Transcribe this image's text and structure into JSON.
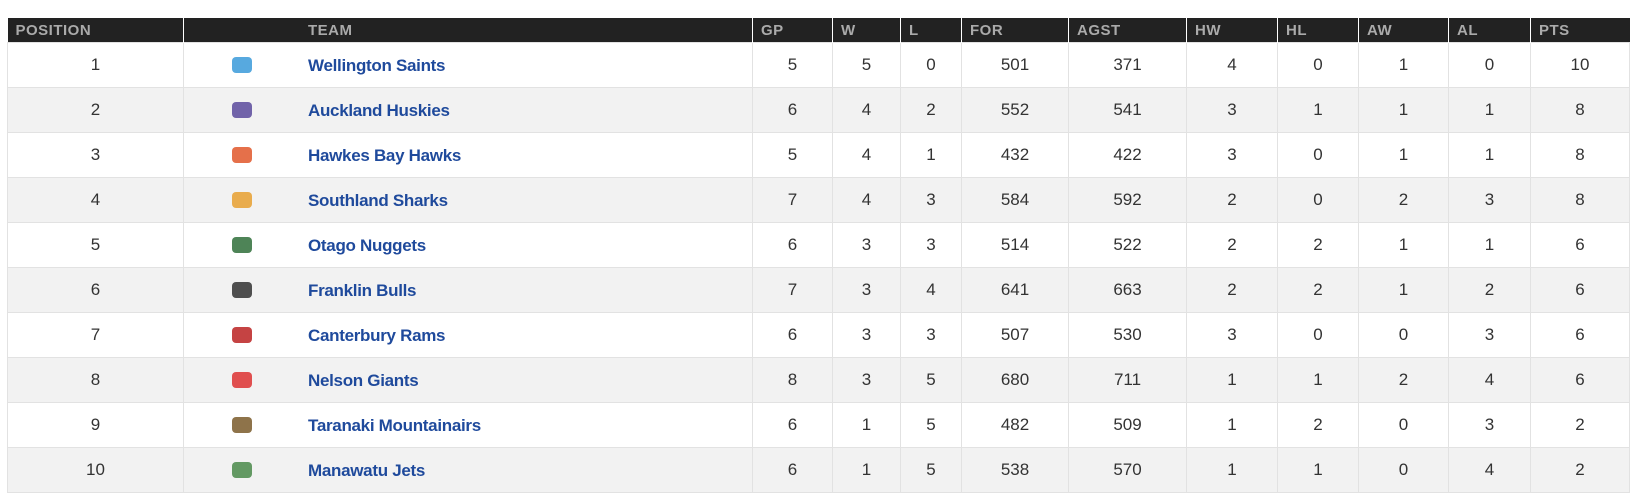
{
  "table": {
    "header": [
      "POSITION",
      "TEAM",
      "GP",
      "W",
      "L",
      "FOR",
      "AGST",
      "HW",
      "HL",
      "AW",
      "AL",
      "PTS"
    ],
    "rows": [
      [
        1,
        "Wellington Saints",
        5,
        5,
        0,
        501,
        371,
        4,
        0,
        1,
        0,
        10
      ],
      [
        2,
        "Auckland Huskies",
        6,
        4,
        2,
        552,
        541,
        3,
        1,
        1,
        1,
        8
      ],
      [
        3,
        "Hawkes Bay Hawks",
        5,
        4,
        1,
        432,
        422,
        3,
        0,
        1,
        1,
        8
      ],
      [
        4,
        "Southland Sharks",
        7,
        4,
        3,
        584,
        592,
        2,
        0,
        2,
        3,
        8
      ],
      [
        5,
        "Otago Nuggets",
        6,
        3,
        3,
        514,
        522,
        2,
        2,
        1,
        1,
        6
      ],
      [
        6,
        "Franklin Bulls",
        7,
        3,
        4,
        641,
        663,
        2,
        2,
        1,
        2,
        6
      ],
      [
        7,
        "Canterbury Rams",
        6,
        3,
        3,
        507,
        530,
        3,
        0,
        0,
        3,
        6
      ],
      [
        8,
        "Nelson Giants",
        8,
        3,
        5,
        680,
        711,
        1,
        1,
        2,
        4,
        6
      ],
      [
        9,
        "Taranaki Mountainairs",
        6,
        1,
        5,
        482,
        509,
        1,
        2,
        0,
        3,
        2
      ],
      [
        10,
        "Manawatu Jets",
        6,
        1,
        5,
        538,
        570,
        1,
        1,
        0,
        4,
        2
      ]
    ]
  }
}
